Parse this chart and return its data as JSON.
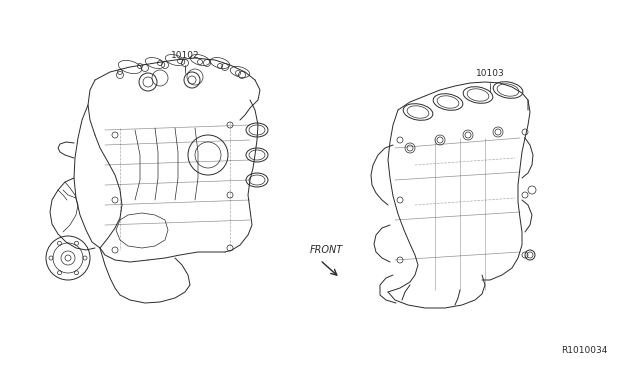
{
  "background_color": "#ffffff",
  "label_10102": "10102",
  "label_10103": "10103",
  "ref_number": "R1010034",
  "front_label": "FRONT",
  "fig_width": 6.4,
  "fig_height": 3.72,
  "dpi": 100,
  "line_color": "#2a2a2a",
  "text_color": "#2a2a2a",
  "label_fontsize": 6.5,
  "ref_fontsize": 6.5,
  "front_fontsize": 7.0
}
